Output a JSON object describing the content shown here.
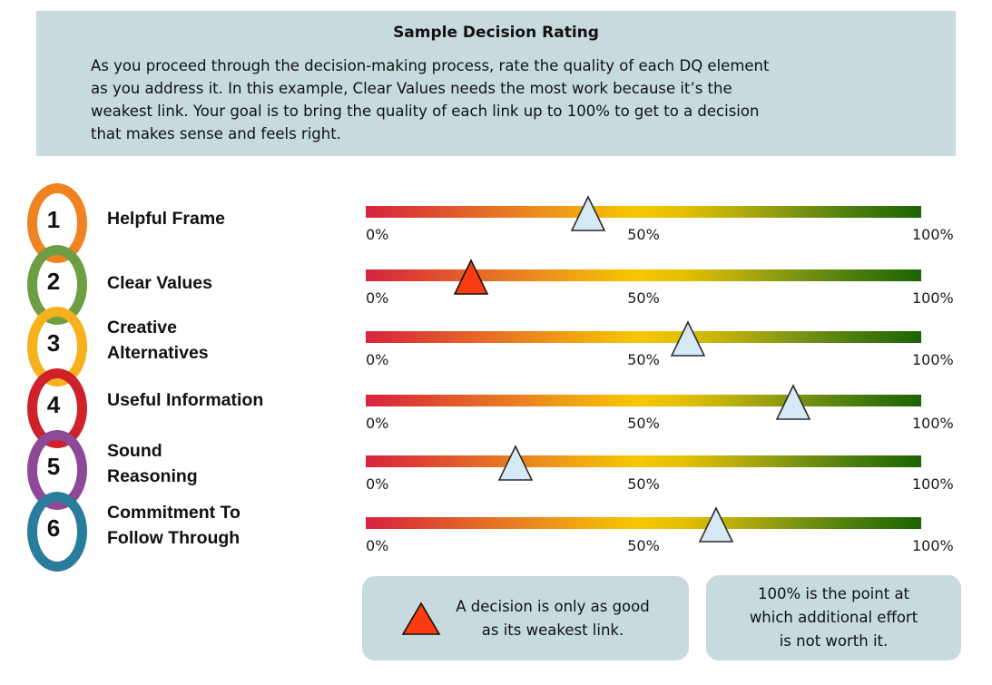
{
  "header": {
    "title": "Sample Decision Rating",
    "body": "As you proceed through the decision-making process, rate the quality of each DQ element\nas you address it. In this example, Clear Values needs the most work because it’s the\nweakest link. Your goal is to bring the quality of each link up to 100% to get to a decision\nthat makes sense and feels right."
  },
  "scale": {
    "ticks": [
      "0%",
      "50%",
      "100%"
    ]
  },
  "rows": [
    {
      "number": "1",
      "label": "Helpful Frame",
      "ring_color": "#EF8322",
      "rating_percent": 40,
      "marker": "blue"
    },
    {
      "number": "2",
      "label": "Clear Values",
      "ring_color": "#6D9E44",
      "rating_percent": 19,
      "marker": "red"
    },
    {
      "number": "3",
      "label": "Creative\nAlternatives",
      "ring_color": "#F6B11D",
      "rating_percent": 58,
      "marker": "blue"
    },
    {
      "number": "4",
      "label": "Useful Information",
      "ring_color": "#CE2129",
      "rating_percent": 77,
      "marker": "blue"
    },
    {
      "number": "5",
      "label": "Sound\nReasoning",
      "ring_color": "#8D4897",
      "rating_percent": 27,
      "marker": "blue"
    },
    {
      "number": "6",
      "label": "Commitment To\nFollow Through",
      "ring_color": "#2A7C9D",
      "rating_percent": 63,
      "marker": "blue"
    }
  ],
  "legend": {
    "weakest_link_note": "A decision is only as good\nas its weakest link.",
    "effort_note": "100% is the point at\nwhich additional effort\nis not worth it."
  },
  "colors": {
    "panel_bg": "#C7DADE",
    "marker_blue": "#D6E9F7",
    "marker_red": "#FB3B10",
    "gradient_start": "#D8243F",
    "gradient_mid": "#F7C600",
    "gradient_end": "#1B6402"
  },
  "chart_data": {
    "type": "scatter",
    "title": "Sample Decision Rating",
    "categories": [
      "Helpful Frame",
      "Clear Values",
      "Creative Alternatives",
      "Useful Information",
      "Sound Reasoning",
      "Commitment To Follow Through"
    ],
    "values": [
      40,
      19,
      58,
      77,
      27,
      63
    ],
    "xlim": [
      0,
      100
    ],
    "x_tick_labels": [
      "0%",
      "50%",
      "100%"
    ],
    "legend_entries": [
      "A decision is only as good as its weakest link.",
      "100% is the point at which additional effort is not worth it."
    ],
    "highlight": {
      "category": "Clear Values",
      "marker_color": "#FB3B10"
    }
  }
}
